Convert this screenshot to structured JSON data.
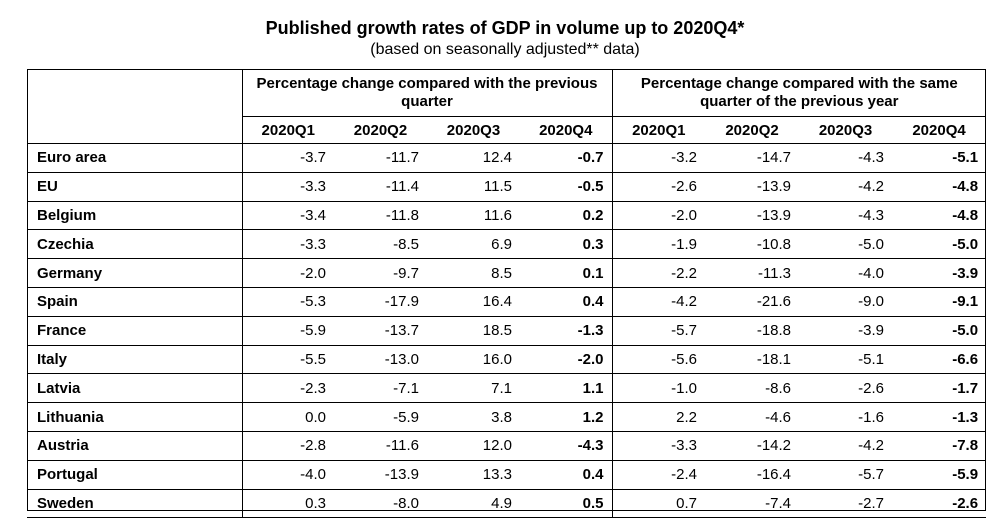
{
  "title": "Published growth rates of GDP in volume up to 2020Q4*",
  "subtitle": "(based on seasonally adjusted** data)",
  "table": {
    "group_headers": [
      "Percentage change compared with the previous quarter",
      "Percentage change compared with the same quarter of the previous year"
    ],
    "quarters": [
      "2020Q1",
      "2020Q2",
      "2020Q3",
      "2020Q4",
      "2020Q1",
      "2020Q2",
      "2020Q3",
      "2020Q4"
    ],
    "rows": [
      {
        "country": "Euro area",
        "values": [
          "-3.7",
          "-11.7",
          "12.4",
          "-0.7",
          "-3.2",
          "-14.7",
          "-4.3",
          "-5.1"
        ]
      },
      {
        "country": "EU",
        "values": [
          "-3.3",
          "-11.4",
          "11.5",
          "-0.5",
          "-2.6",
          "-13.9",
          "-4.2",
          "-4.8"
        ]
      },
      {
        "country": "Belgium",
        "values": [
          "-3.4",
          "-11.8",
          "11.6",
          "0.2",
          "-2.0",
          "-13.9",
          "-4.3",
          "-4.8"
        ]
      },
      {
        "country": "Czechia",
        "values": [
          "-3.3",
          "-8.5",
          "6.9",
          "0.3",
          "-1.9",
          "-10.8",
          "-5.0",
          "-5.0"
        ]
      },
      {
        "country": "Germany",
        "values": [
          "-2.0",
          "-9.7",
          "8.5",
          "0.1",
          "-2.2",
          "-11.3",
          "-4.0",
          "-3.9"
        ]
      },
      {
        "country": "Spain",
        "values": [
          "-5.3",
          "-17.9",
          "16.4",
          "0.4",
          "-4.2",
          "-21.6",
          "-9.0",
          "-9.1"
        ]
      },
      {
        "country": "France",
        "values": [
          "-5.9",
          "-13.7",
          "18.5",
          "-1.3",
          "-5.7",
          "-18.8",
          "-3.9",
          "-5.0"
        ]
      },
      {
        "country": "Italy",
        "values": [
          "-5.5",
          "-13.0",
          "16.0",
          "-2.0",
          "-5.6",
          "-18.1",
          "-5.1",
          "-6.6"
        ]
      },
      {
        "country": "Latvia",
        "values": [
          "-2.3",
          "-7.1",
          "7.1",
          "1.1",
          "-1.0",
          "-8.6",
          "-2.6",
          "-1.7"
        ]
      },
      {
        "country": "Lithuania",
        "values": [
          "0.0",
          "-5.9",
          "3.8",
          "1.2",
          "2.2",
          "-4.6",
          "-1.6",
          "-1.3"
        ]
      },
      {
        "country": "Austria",
        "values": [
          "-2.8",
          "-11.6",
          "12.0",
          "-4.3",
          "-3.3",
          "-14.2",
          "-4.2",
          "-7.8"
        ]
      },
      {
        "country": "Portugal",
        "values": [
          "-4.0",
          "-13.9",
          "13.3",
          "0.4",
          "-2.4",
          "-16.4",
          "-5.7",
          "-5.9"
        ]
      },
      {
        "country": "Sweden",
        "values": [
          "0.3",
          "-8.0",
          "4.9",
          "0.5",
          "0.7",
          "-7.4",
          "-2.7",
          "-2.6"
        ]
      }
    ]
  }
}
